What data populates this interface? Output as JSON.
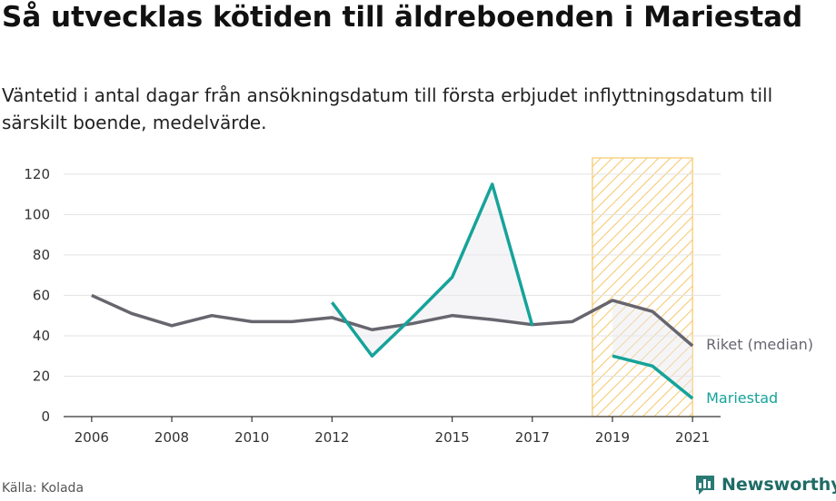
{
  "header": {
    "title": "Så utvecklas kötiden till äldreboenden i Mariestad",
    "subtitle": "Väntetid i antal dagar från ansökningsdatum till första erbjudet inflyttningsdatum till särskilt boende, medelvärde."
  },
  "footer": {
    "source": "Källa: Kolada",
    "brand": "Newsworthy"
  },
  "colors": {
    "riket": "#67656e",
    "mariestad": "#16a39a",
    "highlight": "#f6c76a",
    "fill": "#e9e9ee"
  },
  "chart_data": {
    "type": "line",
    "xlim": [
      2005.3,
      2021.7
    ],
    "ylim": [
      0,
      128
    ],
    "x_ticks": [
      2006,
      2008,
      2010,
      2012,
      2015,
      2017,
      2019,
      2021
    ],
    "y_ticks": [
      0,
      20,
      40,
      60,
      80,
      100,
      120
    ],
    "highlight_range": [
      2018.5,
      2021
    ],
    "series": [
      {
        "name": "Riket (median)",
        "color": "#67656e",
        "points": [
          [
            2006,
            60
          ],
          [
            2007,
            51
          ],
          [
            2008,
            45
          ],
          [
            2009,
            50
          ],
          [
            2010,
            47
          ],
          [
            2011,
            47
          ],
          [
            2012,
            49
          ],
          [
            2013,
            43
          ],
          [
            2014,
            46
          ],
          [
            2015,
            50
          ],
          [
            2016,
            48
          ],
          [
            2017,
            45.5
          ],
          [
            2018,
            47
          ],
          [
            2019,
            57.5
          ],
          [
            2020,
            52
          ],
          [
            2021,
            35
          ]
        ]
      },
      {
        "name": "Mariestad",
        "color": "#16a39a",
        "segments": [
          [
            [
              2012,
              56.5
            ],
            [
              2013,
              30
            ],
            [
              2014,
              49
            ],
            [
              2015,
              69
            ],
            [
              2016,
              115
            ],
            [
              2017,
              45
            ]
          ],
          [
            [
              2019,
              30
            ],
            [
              2020,
              25
            ],
            [
              2021,
              9
            ]
          ]
        ]
      }
    ]
  }
}
